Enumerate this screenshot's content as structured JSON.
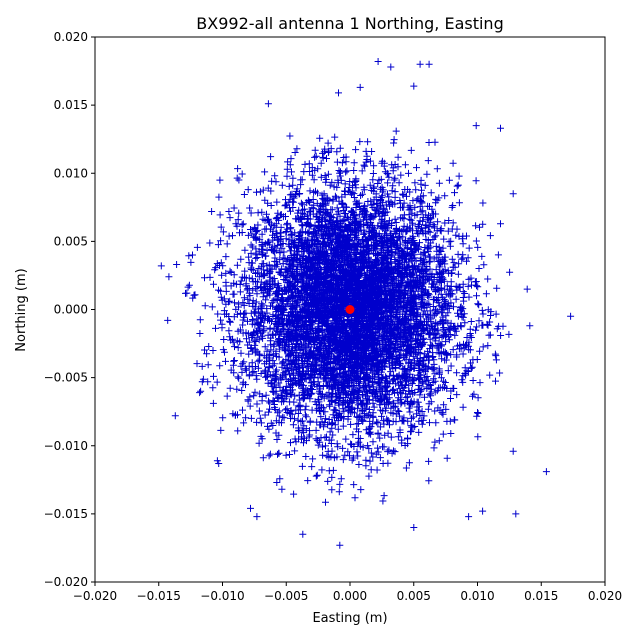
{
  "chart_data": {
    "type": "scatter",
    "title": "BX992-all antenna 1 Northing, Easting",
    "xlabel": "Easting (m)",
    "ylabel": "Northing (m)",
    "xlim": [
      -0.02,
      0.02
    ],
    "ylim": [
      -0.02,
      0.02
    ],
    "x_ticks": [
      "−0.020",
      "−0.015",
      "−0.010",
      "−0.005",
      "0.000",
      "0.005",
      "0.010",
      "0.015",
      "0.020"
    ],
    "y_ticks": [
      "−0.020",
      "−0.015",
      "−0.010",
      "−0.005",
      "0.000",
      "0.005",
      "0.010",
      "0.015",
      "0.020"
    ],
    "x_tick_values": [
      -0.02,
      -0.015,
      -0.01,
      -0.005,
      0,
      0.005,
      0.01,
      0.015,
      0.02
    ],
    "y_tick_values": [
      -0.02,
      -0.015,
      -0.01,
      -0.005,
      0,
      0.005,
      0.01,
      0.015,
      0.02
    ],
    "grid": false,
    "marker_color": "#0000cc",
    "center_color": "#ff0000",
    "series": [
      {
        "marker": "+",
        "color": "#0000cc",
        "distribution": {
          "x_mean": 0.0,
          "y_mean": 0.0,
          "x_std": 0.0042,
          "y_std": 0.0045
        },
        "outliers": [
          [
            -0.0148,
            0.0032
          ],
          [
            -0.0142,
            0.0024
          ],
          [
            -0.0136,
            0.0033
          ],
          [
            -0.0143,
            -0.0008
          ],
          [
            -0.0137,
            -0.0078
          ],
          [
            -0.0128,
            0.0012
          ],
          [
            -0.0118,
            -0.0061
          ],
          [
            -0.0104,
            -0.0111
          ],
          [
            -0.0103,
            -0.0113
          ],
          [
            -0.0102,
            0.0095
          ],
          [
            -0.0078,
            -0.0146
          ],
          [
            -0.0073,
            -0.0152
          ],
          [
            -0.0064,
            0.0151
          ],
          [
            -0.0037,
            -0.0165
          ],
          [
            -0.0008,
            -0.0173
          ],
          [
            -0.0009,
            0.0159
          ],
          [
            0.0008,
            0.0163
          ],
          [
            0.0022,
            0.0182
          ],
          [
            0.0032,
            0.0178
          ],
          [
            0.005,
            0.0164
          ],
          [
            0.0055,
            0.018
          ],
          [
            0.0062,
            0.018
          ],
          [
            0.005,
            -0.016
          ],
          [
            0.0093,
            -0.0152
          ],
          [
            0.0099,
            0.0135
          ],
          [
            0.0118,
            0.0133
          ],
          [
            0.0128,
            0.0085
          ],
          [
            0.013,
            -0.015
          ],
          [
            0.0128,
            -0.0104
          ],
          [
            0.0139,
            0.0015
          ],
          [
            0.0141,
            -0.0012
          ],
          [
            0.0154,
            -0.0119
          ],
          [
            0.0173,
            -0.0005
          ],
          [
            0.0104,
            -0.0148
          ],
          [
            0.0118,
            0.0063
          ]
        ]
      }
    ],
    "center_point": {
      "x": 0.0,
      "y": 0.0,
      "color": "#ff0000"
    }
  }
}
